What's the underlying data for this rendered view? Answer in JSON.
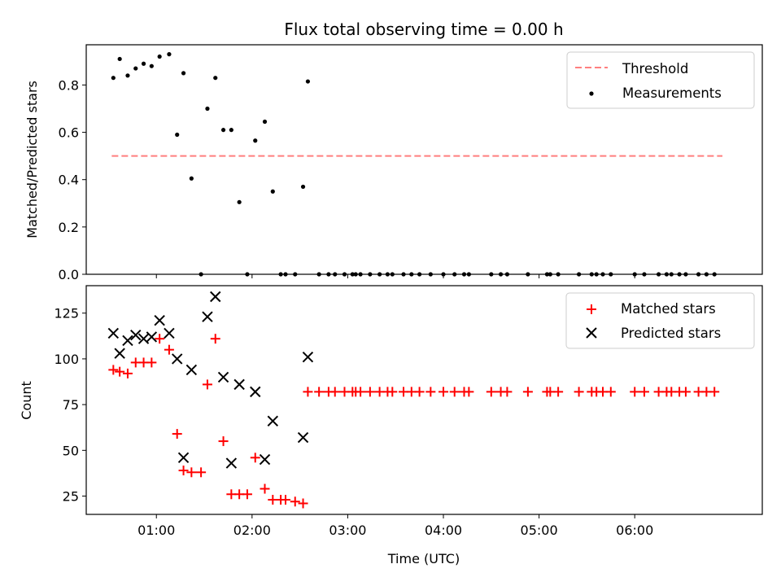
{
  "chart_data": [
    {
      "type": "line+scatter",
      "title": "Flux total observing time = 0.00 h",
      "xlabel": "",
      "ylabel": "Matched/Predicted stars",
      "xlim": [
        16,
        440
      ],
      "ylim": [
        0,
        0.97
      ],
      "yticks": [
        0.0,
        0.2,
        0.4,
        0.6,
        0.8
      ],
      "ytick_labels": [
        "0.0",
        "0.2",
        "0.4",
        "0.6",
        "0.8"
      ],
      "legend_position": "top-right",
      "series": [
        {
          "name": "Threshold",
          "kind": "line",
          "style": "dashed",
          "color": "#ff7f7f",
          "x": [
            32,
            415
          ],
          "y": [
            0.5,
            0.5
          ]
        },
        {
          "name": "Measurements",
          "kind": "scatter",
          "marker": "dot",
          "color": "#000000",
          "x": [
            33,
            37,
            42,
            47,
            52,
            57,
            62,
            68,
            73,
            77,
            82,
            88,
            92,
            97,
            102,
            107,
            112,
            117,
            122,
            128,
            133,
            138,
            141,
            147,
            152,
            155,
            162,
            168,
            172,
            178,
            183,
            185,
            188,
            194,
            200,
            205,
            208,
            215,
            220,
            225,
            232,
            240,
            247,
            253,
            256,
            270,
            276,
            280,
            293,
            305,
            307,
            312,
            325,
            333,
            336,
            340,
            345,
            360,
            366,
            375,
            380,
            383,
            388,
            392,
            400,
            405,
            410
          ],
          "y": [
            0.83,
            0.91,
            0.84,
            0.87,
            0.89,
            0.88,
            0.92,
            0.93,
            0.59,
            0.85,
            0.405,
            0.0,
            0.7,
            0.83,
            0.61,
            0.61,
            0.305,
            0.0,
            0.565,
            0.645,
            0.35,
            0.0,
            0.0,
            0.0,
            0.37,
            0.815,
            0.0,
            0.0,
            0.0,
            0.0,
            0.0,
            0.0,
            0.0,
            0.0,
            0.0,
            0.0,
            0.0,
            0.0,
            0.0,
            0.0,
            0.0,
            0.0,
            0.0,
            0.0,
            0.0,
            0.0,
            0.0,
            0.0,
            0.0,
            0.0,
            0.0,
            0.0,
            0.0,
            0.0,
            0.0,
            0.0,
            0.0,
            0.0,
            0.0,
            0.0,
            0.0,
            0.0,
            0.0,
            0.0,
            0.0,
            0.0,
            0.0
          ]
        }
      ]
    },
    {
      "type": "scatter",
      "title": "",
      "xlabel": "Time (UTC)",
      "ylabel": "Count",
      "xlim": [
        16,
        440
      ],
      "ylim": [
        15,
        140
      ],
      "yticks": [
        25,
        50,
        75,
        100,
        125
      ],
      "ytick_labels": [
        "25",
        "50",
        "75",
        "100",
        "125"
      ],
      "xticks": [
        60,
        120,
        180,
        240,
        300,
        360
      ],
      "xtick_labels": [
        "01:00",
        "02:00",
        "03:00",
        "04:00",
        "05:00",
        "06:00"
      ],
      "legend_position": "top-right",
      "series": [
        {
          "name": "Matched stars",
          "kind": "scatter",
          "marker": "plus",
          "color": "#ff0000",
          "x": [
            33,
            37,
            42,
            47,
            52,
            57,
            62,
            68,
            73,
            77,
            82,
            88,
            92,
            97,
            102,
            107,
            112,
            117,
            122,
            128,
            133,
            138,
            141,
            147,
            152,
            155,
            162,
            168,
            172,
            178,
            183,
            185,
            188,
            194,
            200,
            205,
            208,
            215,
            220,
            225,
            232,
            240,
            247,
            253,
            256,
            270,
            276,
            280,
            293,
            305,
            307,
            312,
            325,
            333,
            336,
            340,
            345,
            360,
            366,
            375,
            380,
            383,
            388,
            392,
            400,
            405,
            410
          ],
          "y": [
            94,
            93,
            92,
            98,
            98,
            98,
            111,
            105,
            59,
            39,
            38,
            38,
            86,
            111,
            55,
            26,
            26,
            26,
            46,
            29,
            23,
            23,
            23,
            22,
            21,
            82,
            82,
            82,
            82,
            82,
            82,
            82,
            82,
            82,
            82,
            82,
            82,
            82,
            82,
            82,
            82,
            82,
            82,
            82,
            82,
            82,
            82,
            82,
            82,
            82,
            82,
            82,
            82,
            82,
            82,
            82,
            82,
            82,
            82,
            82,
            82,
            82,
            82,
            82,
            82,
            82,
            82
          ]
        },
        {
          "name": "Predicted stars",
          "kind": "scatter",
          "marker": "x",
          "color": "#000000",
          "x": [
            33,
            37,
            42,
            47,
            52,
            57,
            62,
            68,
            73,
            77,
            82,
            92,
            97,
            102,
            107,
            112,
            122,
            128,
            133,
            152,
            155
          ],
          "y": [
            114,
            103,
            110,
            113,
            111,
            112,
            121,
            114,
            100,
            46,
            94,
            123,
            134,
            90,
            43,
            86,
            82,
            45,
            66,
            57,
            101
          ]
        }
      ]
    }
  ]
}
